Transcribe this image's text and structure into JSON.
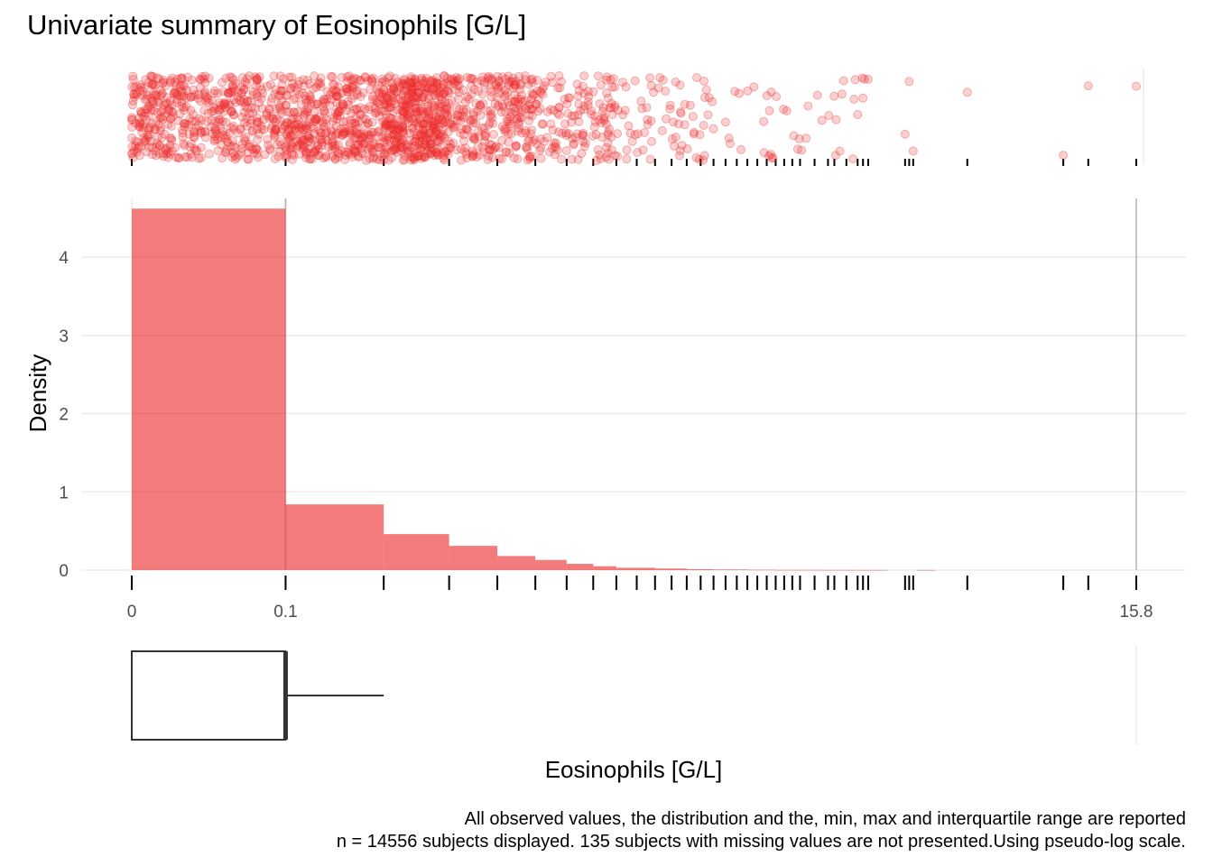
{
  "title": "Univariate summary of Eosinophils [G/L]",
  "caption": {
    "line1": "All observed values, the distribution and the, min, max and interquartile range are reported",
    "line2": "n = 14556 subjects displayed. 135 subjects with missing values are not presented.Using pseudo-log scale."
  },
  "colors": {
    "fill": "#EE2A2A",
    "box": "#333333",
    "grid": "#EBEBEB"
  },
  "chart_data": {
    "type": "histogram",
    "xlabel": "Eosinophils [G/L]",
    "ylabel": "Density",
    "x_scale": "pseudo-log",
    "x_ticks": [
      "0",
      "0.1",
      "15.8"
    ],
    "y_ticks": [
      "0",
      "1",
      "2",
      "3",
      "4"
    ],
    "ylim": [
      0,
      4.75
    ],
    "bins": [
      {
        "x0": 0.0,
        "x1": 0.1,
        "density": 4.62
      },
      {
        "x0": 0.1,
        "x1": 0.2,
        "density": 0.84
      },
      {
        "x0": 0.2,
        "x1": 0.3,
        "density": 0.46
      },
      {
        "x0": 0.3,
        "x1": 0.4,
        "density": 0.31
      },
      {
        "x0": 0.4,
        "x1": 0.5,
        "density": 0.18
      },
      {
        "x0": 0.5,
        "x1": 0.6,
        "density": 0.13
      },
      {
        "x0": 0.6,
        "x1": 0.7,
        "density": 0.08
      },
      {
        "x0": 0.7,
        "x1": 0.8,
        "density": 0.05
      },
      {
        "x0": 0.8,
        "x1": 1.0,
        "density": 0.03
      },
      {
        "x0": 1.0,
        "x1": 1.2,
        "density": 0.02
      },
      {
        "x0": 1.2,
        "x1": 1.4,
        "density": 0.012
      },
      {
        "x0": 1.4,
        "x1": 1.7,
        "density": 0.008
      },
      {
        "x0": 1.7,
        "x1": 2.0,
        "density": 0.005
      },
      {
        "x0": 2.0,
        "x1": 2.6,
        "density": 0.003
      },
      {
        "x0": 2.6,
        "x1": 3.2,
        "density": 0.002
      },
      {
        "x0": 3.2,
        "x1": 3.8,
        "density": 0.0015
      },
      {
        "x0": 4.5,
        "x1": 5.0,
        "density": 0.001
      }
    ],
    "rug_values": [
      0.2,
      0.3,
      0.4,
      0.5,
      0.6,
      0.7,
      0.8,
      0.9,
      1.0,
      1.1,
      1.2,
      1.3,
      1.4,
      1.5,
      1.6,
      1.7,
      1.8,
      1.9,
      2.0,
      2.1,
      2.2,
      2.3,
      2.5,
      2.7,
      2.8,
      3.0,
      3.2,
      3.3,
      3.4,
      4.2,
      4.3,
      4.4,
      6.0,
      10.4,
      12.0,
      15.8
    ],
    "boxplot": {
      "min": 0.0,
      "q1": 0.0,
      "median": 0.1,
      "q3": 0.1,
      "max": 0.2
    },
    "xlim": [
      0,
      15.8
    ]
  }
}
